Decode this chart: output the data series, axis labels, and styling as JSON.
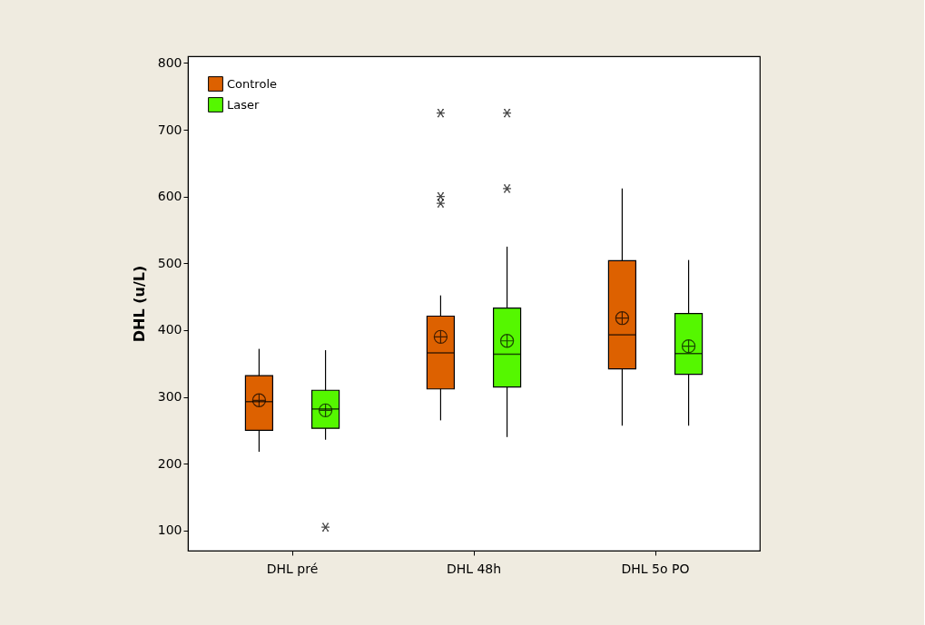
{
  "chart_data": {
    "type": "box",
    "ylabel": "DHL (u/L)",
    "categories": [
      "DHL pré",
      "DHL 48h",
      "DHL 5o PO"
    ],
    "series": [
      {
        "name": "Controle",
        "color": "#dd6100",
        "boxes": [
          {
            "low": 218,
            "q1": 250,
            "median": 293,
            "q3": 332,
            "high": 372,
            "mean": 295
          },
          {
            "low": 265,
            "q1": 312,
            "median": 366,
            "q3": 421,
            "high": 452,
            "mean": 390,
            "outliers": [
              725,
              600,
              590
            ]
          },
          {
            "low": 257,
            "q1": 342,
            "median": 393,
            "q3": 504,
            "high": 612,
            "mean": 418
          }
        ]
      },
      {
        "name": "Laser",
        "color": "#55f700",
        "boxes": [
          {
            "low": 236,
            "q1": 253,
            "median": 282,
            "q3": 310,
            "high": 370,
            "mean": 280,
            "outliers": [
              105
            ]
          },
          {
            "low": 240,
            "q1": 315,
            "median": 364,
            "q3": 433,
            "high": 525,
            "mean": 384,
            "outliers": [
              725,
              612
            ]
          },
          {
            "low": 257,
            "q1": 334,
            "median": 365,
            "q3": 425,
            "high": 505,
            "mean": 376
          }
        ]
      }
    ],
    "ylim": [
      70,
      810
    ],
    "yticks": [
      100,
      200,
      300,
      400,
      500,
      600,
      700,
      800
    ],
    "grid": false,
    "legend": "top left"
  }
}
